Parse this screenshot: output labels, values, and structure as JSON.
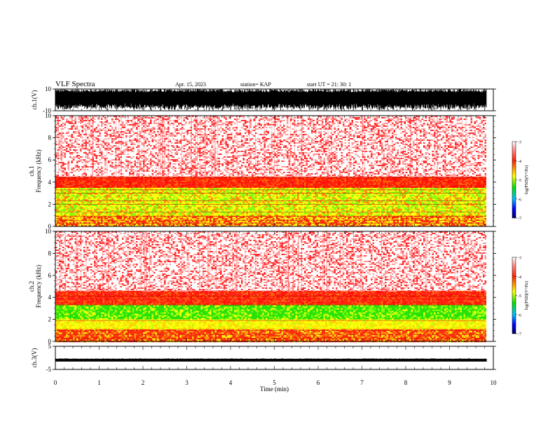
{
  "header": {
    "title": "VLF Spectra",
    "date": "Apr. 15, 2023",
    "station": "station= KAP",
    "start": "start  UT  =   21: 30: 1"
  },
  "chart_data": [
    {
      "type": "line",
      "panel": "ch1-waveform",
      "ylabel": "ch.1(V)",
      "ylim": [
        -10,
        10
      ],
      "yticks": [
        "10",
        "-10"
      ],
      "xlim": [
        0,
        10
      ],
      "style": "dense black noise waveform"
    },
    {
      "type": "heatmap",
      "panel": "ch1-spectrogram",
      "ylabel": "ch.1\nFrequency  (kHz)",
      "ylabel_line1": "ch.1",
      "ylabel_line2": "Frequency  (kHz)",
      "ylim": [
        0,
        10
      ],
      "yticks": [
        "0",
        "2",
        "4",
        "6",
        "8",
        "10"
      ],
      "xlim": [
        0,
        10
      ],
      "data_end_min": 9.8,
      "bands_khz": [
        {
          "from": 0,
          "to": 1.0,
          "level": "yellow-red"
        },
        {
          "from": 1.0,
          "to": 3.5,
          "level": "yellow-green"
        },
        {
          "from": 3.5,
          "to": 4.5,
          "level": "red"
        },
        {
          "from": 4.5,
          "to": 10,
          "level": "sparse-red"
        }
      ],
      "colorbar": {
        "label": "log(PSD)(V²/Hz)",
        "range": [
          -7,
          -3
        ],
        "ticks": [
          "-3",
          "-4",
          "-5",
          "-6",
          "-7"
        ]
      }
    },
    {
      "type": "heatmap",
      "panel": "ch2-spectrogram",
      "ylabel_line1": "ch.2",
      "ylabel_line2": "Frequency  (kHz)",
      "ylim": [
        0,
        10
      ],
      "yticks": [
        "0",
        "2",
        "4",
        "6",
        "8",
        "10"
      ],
      "xlim": [
        0,
        10
      ],
      "data_end_min": 9.8,
      "bands_khz": [
        {
          "from": 0,
          "to": 1.2,
          "level": "red-yellow"
        },
        {
          "from": 1.2,
          "to": 2.0,
          "level": "yellow"
        },
        {
          "from": 2.0,
          "to": 3.4,
          "level": "green"
        },
        {
          "from": 3.4,
          "to": 4.6,
          "level": "red"
        },
        {
          "from": 4.6,
          "to": 10,
          "level": "sparse-red"
        }
      ],
      "colorbar": {
        "label": "log(PSD)(V²/Hz)",
        "range": [
          -7,
          -3
        ],
        "ticks": [
          "-3",
          "-4",
          "-5",
          "-6",
          "-7"
        ]
      }
    },
    {
      "type": "line",
      "panel": "ch3-waveform",
      "ylabel": "ch.3(V)",
      "ylim": [
        -5,
        5
      ],
      "yticks": [
        "5",
        "-5"
      ],
      "xlim": [
        0,
        10
      ],
      "style": "thin black band near -1 V"
    }
  ],
  "xaxis": {
    "label": "Time  (min)",
    "ticks": [
      "0",
      "1",
      "2",
      "3",
      "4",
      "5",
      "6",
      "7",
      "8",
      "9",
      "10"
    ]
  },
  "colors": {
    "low": "#000080",
    "mid_low": "#00d000",
    "mid": "#ffff00",
    "high": "#ff0000",
    "background": "#ffffff"
  }
}
